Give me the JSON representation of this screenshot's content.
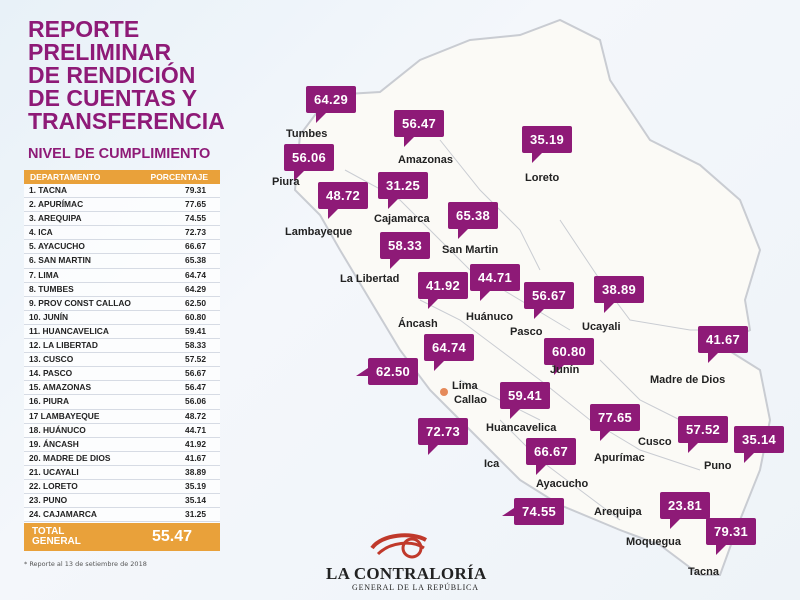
{
  "title": "REPORTE\nPRELIMINAR\nDE RENDICIÓN\nDE CUENTAS Y\nTRANSFERENCIA",
  "subtitle": "NIVEL DE CUMPLIMIENTO",
  "table": {
    "col_department": "DEPARTAMENTO",
    "col_percentage": "PORCENTAJE",
    "rows": [
      {
        "name": "1. TACNA",
        "value": "79.31"
      },
      {
        "name": "2. APURÍMAC",
        "value": "77.65"
      },
      {
        "name": "3. AREQUIPA",
        "value": "74.55"
      },
      {
        "name": "4. ICA",
        "value": "72.73"
      },
      {
        "name": "5. AYACUCHO",
        "value": "66.67"
      },
      {
        "name": "6. SAN MARTIN",
        "value": "65.38"
      },
      {
        "name": "7. LIMA",
        "value": "64.74"
      },
      {
        "name": "8. TUMBES",
        "value": "64.29"
      },
      {
        "name": "9. PROV CONST CALLAO",
        "value": "62.50"
      },
      {
        "name": "10. JUNÍN",
        "value": "60.80"
      },
      {
        "name": "11. HUANCAVELICA",
        "value": "59.41"
      },
      {
        "name": "12. LA LIBERTAD",
        "value": "58.33"
      },
      {
        "name": "13. CUSCO",
        "value": "57.52"
      },
      {
        "name": "14. PASCO",
        "value": "56.67"
      },
      {
        "name": "15. AMAZONAS",
        "value": "56.47"
      },
      {
        "name": "16. PIURA",
        "value": "56.06"
      },
      {
        "name": "17 LAMBAYEQUE",
        "value": "48.72"
      },
      {
        "name": "18. HUÁNUCO",
        "value": "44.71"
      },
      {
        "name": "19. ÁNCASH",
        "value": "41.92"
      },
      {
        "name": "20. MADRE DE DIOS",
        "value": "41.67"
      },
      {
        "name": "21. UCAYALI",
        "value": "38.89"
      },
      {
        "name": "22. LORETO",
        "value": "35.19"
      },
      {
        "name": "23. PUNO",
        "value": "35.14"
      },
      {
        "name": "24. CAJAMARCA",
        "value": "31.25"
      },
      {
        "name": "25. MOQUEGUA",
        "value": "23.81"
      }
    ]
  },
  "total": {
    "label": "TOTAL\nGENERAL",
    "value": "55.47"
  },
  "footnote": "* Reporte al 13 de setiembre de 2018",
  "logo": {
    "name": "LA CONTRALORÍA",
    "sub": "GENERAL DE LA REPÚBLICA"
  },
  "map": {
    "regions": [
      {
        "name": "Tumbes",
        "value": "64.29"
      },
      {
        "name": "Piura",
        "value": "56.06"
      },
      {
        "name": "Amazonas",
        "value": "56.47"
      },
      {
        "name": "Loreto",
        "value": "35.19"
      },
      {
        "name": "Lambayeque",
        "value": "48.72"
      },
      {
        "name": "Cajamarca",
        "value": "31.25"
      },
      {
        "name": "San Martin",
        "value": "65.38"
      },
      {
        "name": "La Libertad",
        "value": "58.33"
      },
      {
        "name": "Áncash",
        "value": "41.92"
      },
      {
        "name": "Huánuco",
        "value": "44.71"
      },
      {
        "name": "Pasco",
        "value": "56.67"
      },
      {
        "name": "Ucayali",
        "value": "38.89"
      },
      {
        "name": "Junín",
        "value": "60.80"
      },
      {
        "name": "Lima",
        "value": "64.74"
      },
      {
        "name": "Callao",
        "value": "62.50"
      },
      {
        "name": "Madre de Dios",
        "value": "41.67"
      },
      {
        "name": "Huancavelica",
        "value": "59.41"
      },
      {
        "name": "Apurímac",
        "value": "77.65"
      },
      {
        "name": "Cusco",
        "value": "57.52"
      },
      {
        "name": "Puno",
        "value": "35.14"
      },
      {
        "name": "Ica",
        "value": "72.73"
      },
      {
        "name": "Ayacucho",
        "value": "66.67"
      },
      {
        "name": "Arequipa",
        "value": "74.55"
      },
      {
        "name": "Moquegua",
        "value": "23.81"
      },
      {
        "name": "Tacna",
        "value": "79.31"
      }
    ]
  },
  "colors": {
    "primary": "#8e1a77",
    "accent": "#e9a13a"
  }
}
